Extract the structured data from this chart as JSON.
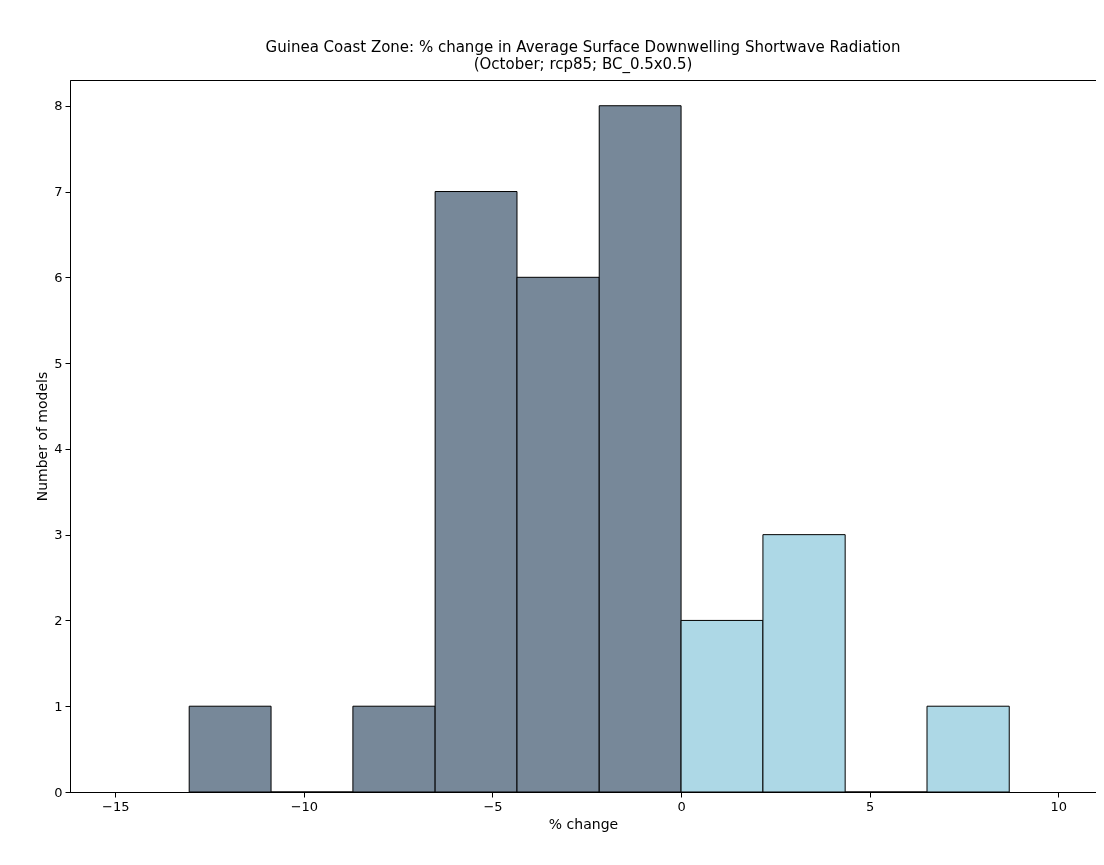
{
  "chart_data": {
    "type": "histogram",
    "title": "Guinea Coast Zone: % change in Average Surface Downwelling Shortwave Radiation",
    "subtitle": "(October; rcp85; BC_0.5x0.5)",
    "xlabel": "% change",
    "ylabel": "Number of models",
    "bins": [
      -13.04,
      -10.87,
      -8.7,
      -6.52,
      -4.35,
      -2.17,
      0,
      2.17,
      4.35,
      6.52,
      8.7
    ],
    "values": [
      1,
      0,
      1,
      7,
      6,
      8,
      2,
      3,
      0,
      1
    ],
    "colors": [
      "#778899",
      "#778899",
      "#778899",
      "#778899",
      "#778899",
      "#778899",
      "#add8e6",
      "#add8e6",
      "#add8e6",
      "#add8e6"
    ],
    "xlim": [
      -16.2,
      11
    ],
    "xticks": [
      -15,
      -10,
      -5,
      0,
      5,
      10
    ],
    "ylim": [
      0,
      8.3
    ],
    "yticks": [
      0,
      1,
      2,
      3,
      4,
      5,
      6,
      7,
      8
    ],
    "grid": false
  }
}
